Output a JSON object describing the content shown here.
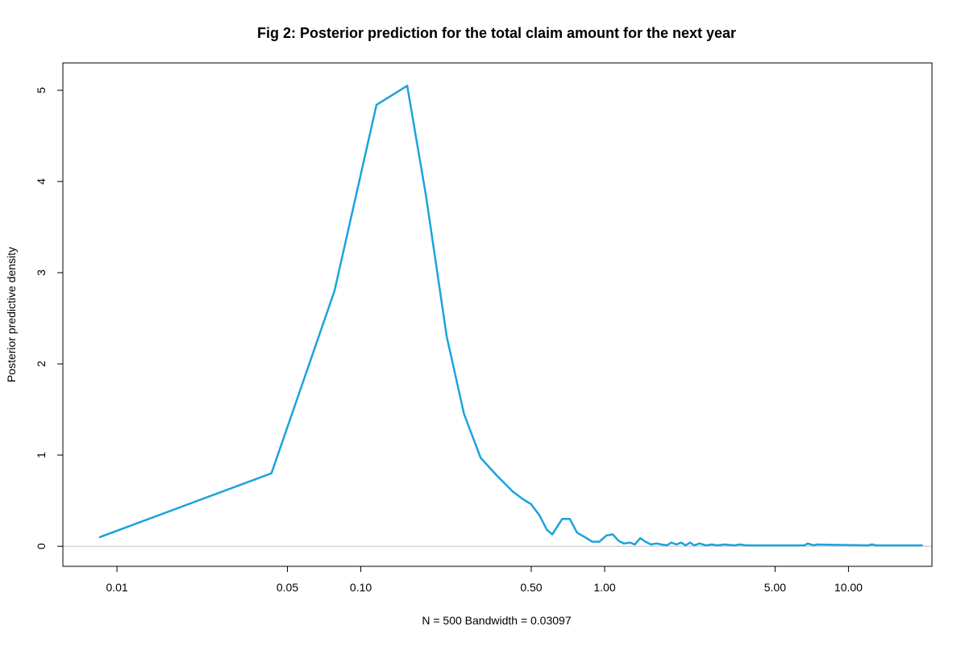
{
  "chart_data": {
    "type": "line",
    "title": "Fig 2: Posterior prediction for the total claim amount for the next year",
    "xlabel": "N = 500   Bandwidth = 0.03097",
    "ylabel": "Posterior predictive density",
    "x_scale": "log",
    "xlim": [
      0.006,
      22
    ],
    "ylim": [
      -0.22,
      5.3
    ],
    "x_ticks": [
      0.01,
      0.05,
      0.1,
      0.5,
      1.0,
      5.0,
      10.0
    ],
    "x_tick_labels": [
      "0.01",
      "0.05",
      "0.10",
      "0.50",
      "1.00",
      "5.00",
      "10.00"
    ],
    "y_ticks": [
      0,
      1,
      2,
      3,
      4,
      5
    ],
    "y_tick_labels": [
      "0",
      "1",
      "2",
      "3",
      "4",
      "5"
    ],
    "grid": false,
    "baseline": 0,
    "colors": {
      "line": "#1ba3dc",
      "baseline": "#bebebe",
      "frame": "#000000"
    },
    "series": [
      {
        "x": [
          0.0085,
          0.043,
          0.078,
          0.116,
          0.155,
          0.185,
          0.225,
          0.265,
          0.31,
          0.36,
          0.42,
          0.46,
          0.5,
          0.54,
          0.58,
          0.61,
          0.67,
          0.72,
          0.77,
          0.83,
          0.89,
          0.95,
          1.02,
          1.08,
          1.14,
          1.2,
          1.27,
          1.33,
          1.4,
          1.47,
          1.55,
          1.63,
          1.71,
          1.8,
          1.88,
          1.97,
          2.06,
          2.15,
          2.24,
          2.33,
          2.45,
          2.6,
          2.75,
          2.9,
          3.1,
          3.4,
          3.6,
          3.8,
          4.2,
          5.0,
          6.6,
          6.8,
          7.2,
          7.4,
          12.0,
          12.5,
          13.0,
          20.0
        ],
        "y": [
          0.1,
          0.8,
          2.8,
          4.84,
          5.05,
          3.85,
          2.3,
          1.45,
          0.97,
          0.78,
          0.6,
          0.52,
          0.46,
          0.34,
          0.18,
          0.13,
          0.3,
          0.3,
          0.15,
          0.1,
          0.05,
          0.05,
          0.12,
          0.13,
          0.06,
          0.03,
          0.04,
          0.02,
          0.09,
          0.05,
          0.02,
          0.03,
          0.02,
          0.01,
          0.04,
          0.02,
          0.04,
          0.01,
          0.04,
          0.01,
          0.03,
          0.01,
          0.02,
          0.01,
          0.02,
          0.01,
          0.02,
          0.01,
          0.01,
          0.01,
          0.01,
          0.03,
          0.01,
          0.02,
          0.01,
          0.02,
          0.01,
          0.01
        ]
      }
    ]
  }
}
